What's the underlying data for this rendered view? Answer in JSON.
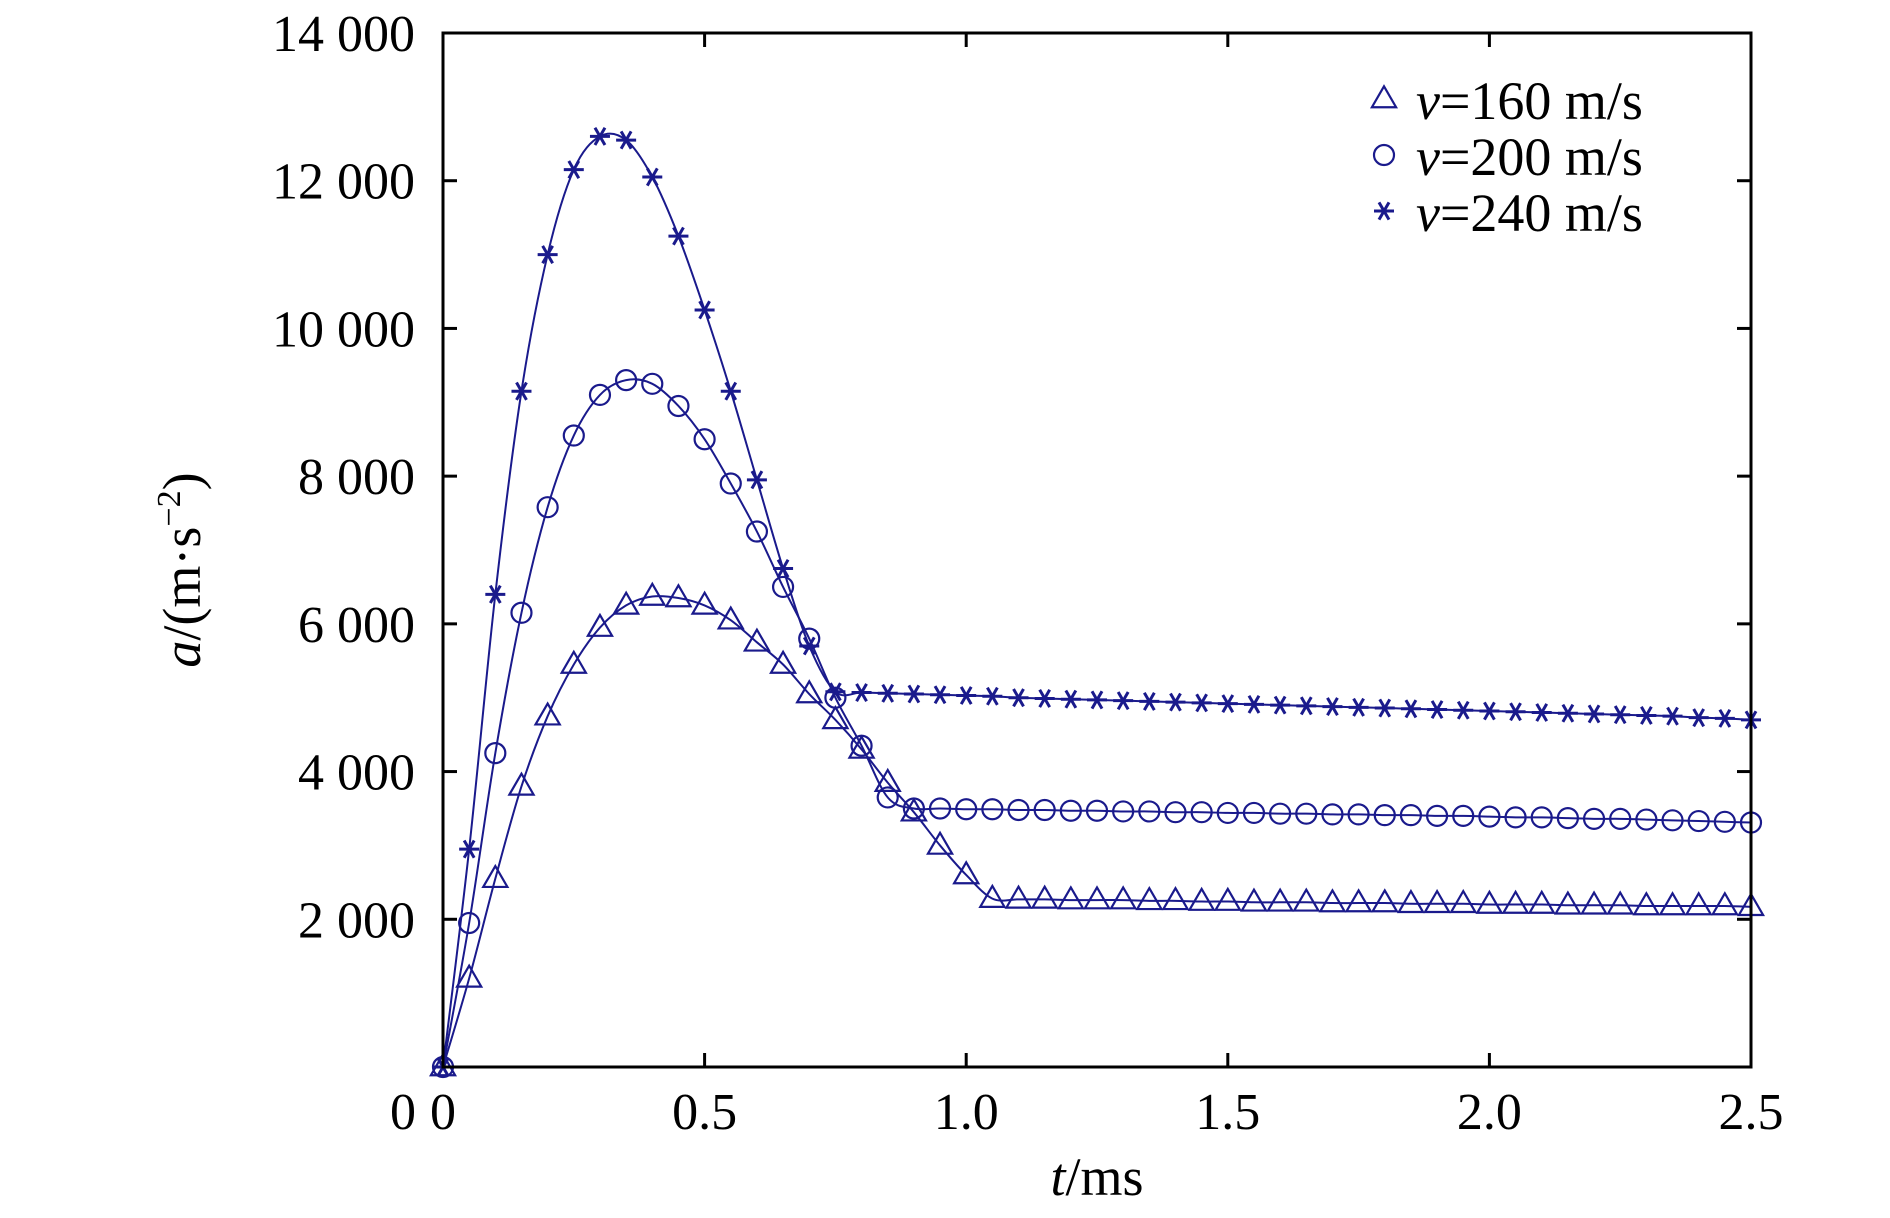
{
  "chart_data": {
    "type": "line",
    "xlim": [
      0,
      2.5
    ],
    "ylim": [
      0,
      14000
    ],
    "xticks": [
      "0",
      "0.5",
      "1.0",
      "1.5",
      "2.0",
      "2.5"
    ],
    "yticks": [
      "2 000",
      "4 000",
      "6 000",
      "8 000",
      "10 000",
      "12 000",
      "14 000"
    ],
    "xlabel_italic": "t",
    "xlabel_rest": "/ms",
    "ylabel_italic": "a",
    "ylabel_rest": "/(m·s",
    "ylabel_sup": "−2",
    "ylabel_close": ")",
    "legend_position": "top-right",
    "color": "#1a1a8c",
    "series": [
      {
        "name": "v=160 m/s",
        "name_italic": "v",
        "name_rest": "=160 m/s",
        "marker": "triangle",
        "x": [
          0.0,
          0.05,
          0.1,
          0.15,
          0.2,
          0.25,
          0.3,
          0.35,
          0.4,
          0.45,
          0.5,
          0.55,
          0.6,
          0.65,
          0.7,
          0.75,
          0.8,
          0.85,
          0.9,
          0.95,
          1.0,
          1.05,
          1.1,
          1.15,
          1.2,
          1.25,
          1.3,
          1.35,
          1.4,
          1.45,
          1.5,
          1.55,
          1.6,
          1.65,
          1.7,
          1.75,
          1.8,
          1.85,
          1.9,
          1.95,
          2.0,
          2.05,
          2.1,
          2.15,
          2.2,
          2.25,
          2.3,
          2.35,
          2.4,
          2.45,
          2.5
        ],
        "y": [
          0,
          1200,
          2550,
          3800,
          4750,
          5450,
          5950,
          6250,
          6370,
          6350,
          6250,
          6050,
          5750,
          5450,
          5050,
          4700,
          4300,
          3850,
          3450,
          3000,
          2600,
          2280,
          2270,
          2270,
          2260,
          2260,
          2260,
          2250,
          2250,
          2240,
          2240,
          2230,
          2230,
          2230,
          2220,
          2220,
          2220,
          2210,
          2210,
          2210,
          2200,
          2200,
          2200,
          2190,
          2190,
          2190,
          2180,
          2180,
          2180,
          2180,
          2170
        ]
      },
      {
        "name": "v=200 m/s",
        "name_italic": "v",
        "name_rest": "=200 m/s",
        "marker": "circle",
        "x": [
          0.0,
          0.05,
          0.1,
          0.15,
          0.2,
          0.25,
          0.3,
          0.35,
          0.4,
          0.45,
          0.5,
          0.55,
          0.6,
          0.65,
          0.7,
          0.75,
          0.8,
          0.85,
          0.9,
          0.95,
          1.0,
          1.05,
          1.1,
          1.15,
          1.2,
          1.25,
          1.3,
          1.35,
          1.4,
          1.45,
          1.5,
          1.55,
          1.6,
          1.65,
          1.7,
          1.75,
          1.8,
          1.85,
          1.9,
          1.95,
          2.0,
          2.05,
          2.1,
          2.15,
          2.2,
          2.25,
          2.3,
          2.35,
          2.4,
          2.45,
          2.5
        ],
        "y": [
          0,
          1950,
          4250,
          6150,
          7580,
          8550,
          9100,
          9300,
          9250,
          8950,
          8500,
          7900,
          7250,
          6500,
          5800,
          5000,
          4350,
          3650,
          3500,
          3500,
          3490,
          3490,
          3480,
          3480,
          3470,
          3470,
          3460,
          3460,
          3450,
          3450,
          3440,
          3440,
          3430,
          3430,
          3420,
          3420,
          3410,
          3410,
          3400,
          3400,
          3390,
          3380,
          3380,
          3370,
          3360,
          3360,
          3350,
          3340,
          3330,
          3320,
          3310
        ]
      },
      {
        "name": "v=240 m/s",
        "name_italic": "v",
        "name_rest": "=240 m/s",
        "marker": "star",
        "x": [
          0.0,
          0.05,
          0.1,
          0.15,
          0.2,
          0.25,
          0.3,
          0.35,
          0.4,
          0.45,
          0.5,
          0.55,
          0.6,
          0.65,
          0.7,
          0.75,
          0.8,
          0.85,
          0.9,
          0.95,
          1.0,
          1.05,
          1.1,
          1.15,
          1.2,
          1.25,
          1.3,
          1.35,
          1.4,
          1.45,
          1.5,
          1.55,
          1.6,
          1.65,
          1.7,
          1.75,
          1.8,
          1.85,
          1.9,
          1.95,
          2.0,
          2.05,
          2.1,
          2.15,
          2.2,
          2.25,
          2.3,
          2.35,
          2.4,
          2.45,
          2.5
        ],
        "y": [
          0,
          2950,
          6400,
          9150,
          11000,
          12150,
          12600,
          12550,
          12050,
          11250,
          10250,
          9150,
          7950,
          6750,
          5700,
          5080,
          5070,
          5060,
          5050,
          5040,
          5030,
          5020,
          5000,
          4990,
          4980,
          4970,
          4960,
          4950,
          4940,
          4930,
          4920,
          4910,
          4900,
          4890,
          4880,
          4870,
          4860,
          4850,
          4840,
          4830,
          4820,
          4810,
          4800,
          4790,
          4780,
          4770,
          4760,
          4750,
          4730,
          4720,
          4700
        ]
      }
    ]
  }
}
